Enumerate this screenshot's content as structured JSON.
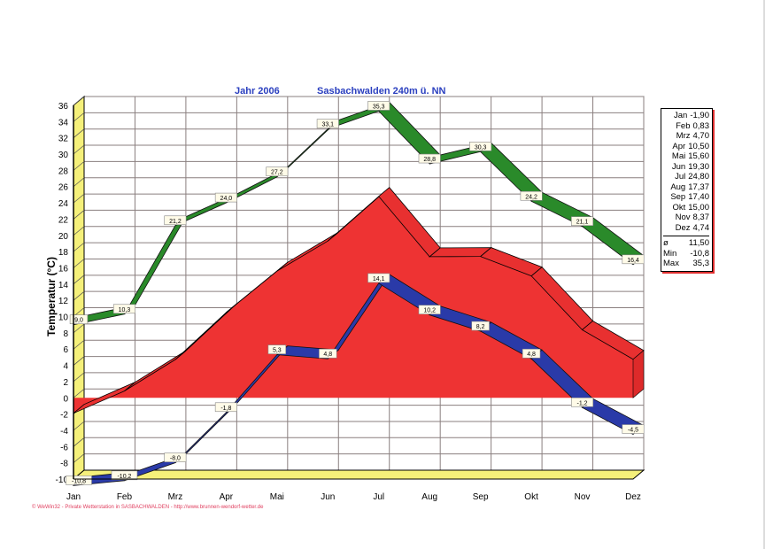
{
  "chart_data": {
    "type": "area",
    "title_year": "Jahr 2006",
    "title_station": "Sasbachwalden  240m ü. NN",
    "ylabel": "Temperatur  (°C)",
    "xlabel": "",
    "ylim": [
      -10,
      36
    ],
    "yticks": [
      36,
      34,
      32,
      30,
      28,
      26,
      24,
      22,
      20,
      18,
      16,
      14,
      12,
      10,
      8,
      6,
      4,
      2,
      0,
      -2,
      -4,
      -6,
      -8,
      -10
    ],
    "categories": [
      "Jan",
      "Feb",
      "Mrz",
      "Apr",
      "Mai",
      "Jun",
      "Jul",
      "Aug",
      "Sep",
      "Okt",
      "Nov",
      "Dez"
    ],
    "grid": true,
    "series": [
      {
        "name": "Mittel",
        "color": "#ee3333",
        "values": [
          -1.9,
          0.83,
          4.7,
          10.5,
          15.6,
          19.3,
          24.8,
          17.37,
          17.4,
          15.0,
          8.37,
          4.74
        ]
      },
      {
        "name": "Max",
        "color": "#2a8a2a",
        "values": [
          9.0,
          10.3,
          21.2,
          24.0,
          27.2,
          33.1,
          35.3,
          28.8,
          30.3,
          24.2,
          21.1,
          16.4
        ],
        "labels": [
          "9,0",
          "10,3",
          "21,2",
          "24,0",
          "27,2",
          "33,1",
          "35,3",
          "28,8",
          "30,3",
          "24,2",
          "21,1",
          "16,4"
        ]
      },
      {
        "name": "Min",
        "color": "#2a3aa8",
        "values": [
          -10.8,
          -10.2,
          -8.0,
          -1.8,
          5.3,
          4.8,
          14.1,
          10.2,
          8.2,
          4.8,
          -1.2,
          -4.5
        ],
        "labels": [
          "-10,8",
          "-10,2",
          "-8,0",
          "-1,8",
          "5,3",
          "4,8",
          "14,1",
          "10,2",
          "8,2",
          "4,8",
          "-1,2",
          "-4,5"
        ]
      }
    ],
    "legend": {
      "placement": "right",
      "months": [
        {
          "m": "Jan",
          "v": "-1,90"
        },
        {
          "m": "Feb",
          "v": "0,83"
        },
        {
          "m": "Mrz",
          "v": "4,70"
        },
        {
          "m": "Apr",
          "v": "10,50"
        },
        {
          "m": "Mai",
          "v": "15,60"
        },
        {
          "m": "Jun",
          "v": "19,30"
        },
        {
          "m": "Jul",
          "v": "24,80"
        },
        {
          "m": "Aug",
          "v": "17,37"
        },
        {
          "m": "Sep",
          "v": "17,40"
        },
        {
          "m": "Okt",
          "v": "15,00"
        },
        {
          "m": "Nov",
          "v": "8,37"
        },
        {
          "m": "Dez",
          "v": "4,74"
        }
      ],
      "stats": [
        {
          "k": "ø",
          "v": "11,50"
        },
        {
          "k": "Min",
          "v": "-10,8"
        },
        {
          "k": "Max",
          "v": "35,3"
        }
      ]
    }
  },
  "footer": "© WeWin32  -  Private Wetterstation in SASBACHWALDEN  -  http://www.brunnen-wendorf-wetter.de"
}
